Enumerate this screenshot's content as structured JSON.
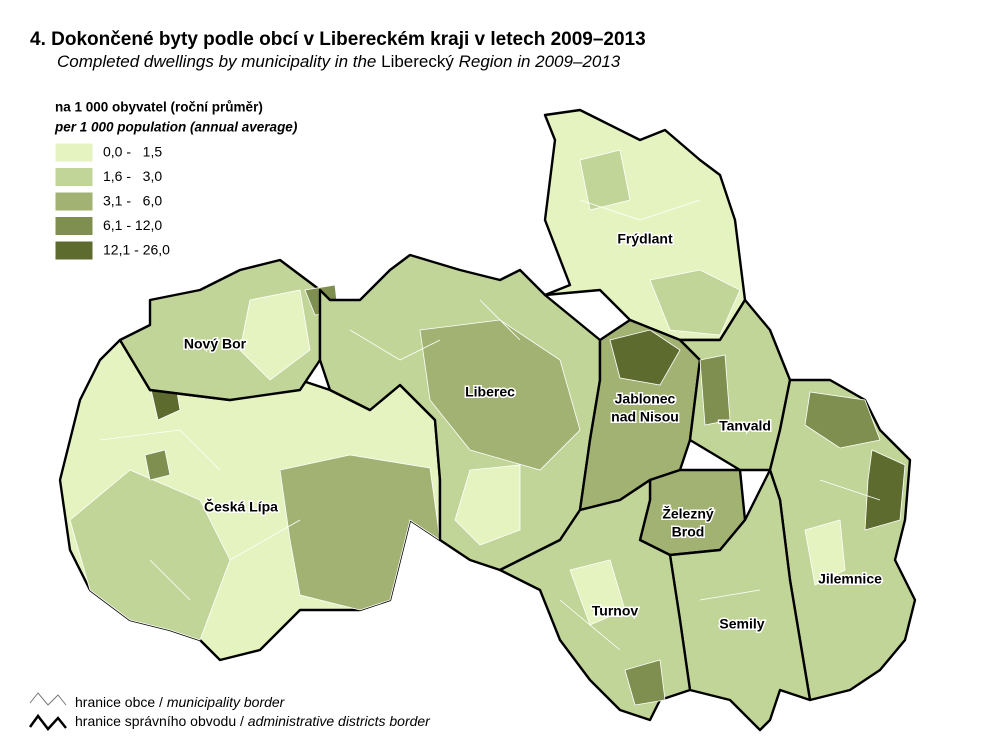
{
  "title": "4. Dokončené byty podle obcí v Libereckém kraji v letech 2009–2013",
  "subtitle": {
    "part1": "Completed dwellings by municipality in the ",
    "part2": "Liberecký",
    "part3": " Region in 2009–2013"
  },
  "legend": {
    "title": "na 1 000 obyvatel (roční průměr)",
    "title_en": "per 1 000 population (annual average)",
    "classes": [
      {
        "label": "0,0 -   1,5",
        "color": "#e4f3bf"
      },
      {
        "label": "1,6 -   3,0",
        "color": "#c2d598"
      },
      {
        "label": "3,1 -   6,0",
        "color": "#a1b273"
      },
      {
        "label": "6,1 - 12,0",
        "color": "#7f8f4f"
      },
      {
        "label": "12,1 - 26,0",
        "color": "#5e6b2f"
      }
    ]
  },
  "districts": [
    {
      "label": [
        "Frýdlant"
      ]
    },
    {
      "label": [
        "Nový Bor"
      ]
    },
    {
      "label": [
        "Liberec"
      ]
    },
    {
      "label": [
        "Jablonec",
        "nad Nisou"
      ]
    },
    {
      "label": [
        "Tanvald"
      ]
    },
    {
      "label": [
        "Česká Lípa"
      ]
    },
    {
      "label": [
        "Železný",
        "Brod"
      ]
    },
    {
      "label": [
        "Jilemnice"
      ]
    },
    {
      "label": [
        "Turnov"
      ]
    },
    {
      "label": [
        "Semily"
      ]
    }
  ],
  "borders": [
    {
      "cz": "hranice obce / ",
      "en": "municipality border"
    },
    {
      "cz": "hranice správního obvodu / ",
      "en": "administrative districts border"
    }
  ]
}
